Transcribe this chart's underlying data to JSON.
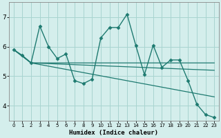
{
  "xlabel": "Humidex (Indice chaleur)",
  "bg_color": "#d4eeec",
  "grid_color": "#a8d4d0",
  "line_color": "#1e7a70",
  "xlim": [
    -0.5,
    23.5
  ],
  "ylim": [
    3.5,
    7.5
  ],
  "yticks": [
    4,
    5,
    6,
    7
  ],
  "xticks": [
    0,
    1,
    2,
    3,
    4,
    5,
    6,
    7,
    8,
    9,
    10,
    11,
    12,
    13,
    14,
    15,
    16,
    17,
    18,
    19,
    20,
    21,
    22,
    23
  ],
  "series": [
    {
      "x": [
        0,
        1,
        2,
        3,
        4,
        5,
        6,
        7,
        8,
        9,
        10,
        11,
        12,
        13,
        14,
        15,
        16,
        17,
        18,
        19,
        20,
        21,
        22,
        23
      ],
      "y": [
        5.9,
        5.7,
        5.45,
        6.7,
        6.0,
        5.6,
        5.75,
        4.85,
        4.75,
        4.9,
        6.3,
        6.65,
        6.65,
        7.1,
        6.05,
        5.05,
        6.05,
        5.3,
        5.55,
        5.55,
        4.85,
        4.05,
        3.7,
        3.6
      ],
      "marker": "D",
      "markersize": 2.5,
      "lw": 1.0
    },
    {
      "x": [
        0,
        1,
        2,
        3,
        23
      ],
      "y": [
        5.9,
        5.7,
        5.45,
        5.45,
        5.45
      ],
      "marker": null,
      "markersize": 0,
      "lw": 0.9
    },
    {
      "x": [
        0,
        2,
        23
      ],
      "y": [
        5.9,
        5.45,
        5.2
      ],
      "marker": null,
      "markersize": 0,
      "lw": 0.9
    },
    {
      "x": [
        0,
        2,
        23
      ],
      "y": [
        5.9,
        5.45,
        4.3
      ],
      "marker": null,
      "markersize": 0,
      "lw": 0.9
    }
  ]
}
